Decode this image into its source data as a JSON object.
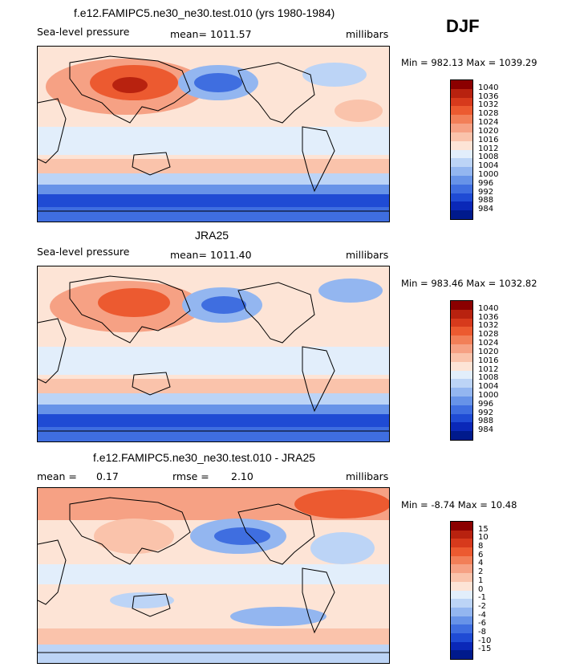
{
  "season": "DJF",
  "panels": [
    {
      "title": "f.e12.FAMIPC5.ne30_ne30.test.010 (yrs 1980-1984)",
      "left_label": "Sea-level pressure",
      "stat_text": "mean= 1011.57",
      "units": "millibars",
      "minmax": "Min = 982.13 Max = 1039.29",
      "colorbar": {
        "labels": [
          "1040",
          "1036",
          "1032",
          "1028",
          "1024",
          "1020",
          "1016",
          "1012",
          "1008",
          "1004",
          "1000",
          "996",
          "992",
          "988",
          "984"
        ],
        "colors": [
          "#8b0000",
          "#b8220f",
          "#d73a1c",
          "#ec5a30",
          "#f27f58",
          "#f6a184",
          "#fac3ab",
          "#fde4d6",
          "#e2eefb",
          "#bcd4f6",
          "#93b6f0",
          "#6793e8",
          "#3f6ee0",
          "#1f4bd4",
          "#0a28b8",
          "#001a8c"
        ]
      },
      "fields": [
        {
          "name": "siberian-high",
          "color": "#e45a34"
        },
        {
          "name": "aleutian-low",
          "color": "#5f8fe8"
        },
        {
          "name": "southern-ocean-low",
          "color": "#1e48d0"
        }
      ]
    },
    {
      "title": "JRA25",
      "left_label": "Sea-level pressure",
      "stat_text": "mean= 1011.40",
      "units": "millibars",
      "minmax": "Min = 983.46 Max = 1032.82",
      "colorbar": {
        "labels": [
          "1040",
          "1036",
          "1032",
          "1028",
          "1024",
          "1020",
          "1016",
          "1012",
          "1008",
          "1004",
          "1000",
          "996",
          "992",
          "988",
          "984"
        ],
        "colors": [
          "#8b0000",
          "#b8220f",
          "#d73a1c",
          "#ec5a30",
          "#f27f58",
          "#f6a184",
          "#fac3ab",
          "#fde4d6",
          "#e2eefb",
          "#bcd4f6",
          "#93b6f0",
          "#6793e8",
          "#3f6ee0",
          "#1f4bd4",
          "#0a28b8",
          "#001a8c"
        ]
      }
    },
    {
      "title": "f.e12.FAMIPC5.ne30_ne30.test.010 - JRA25",
      "mean_label": "mean =",
      "mean_value": "0.17",
      "rmse_label": "rmse =",
      "rmse_value": "2.10",
      "units": "millibars",
      "minmax": "Min = -8.74 Max = 10.48",
      "colorbar": {
        "labels": [
          "15",
          "10",
          "8",
          "6",
          "4",
          "2",
          "1",
          "0",
          "-1",
          "-2",
          "-4",
          "-6",
          "-8",
          "-10",
          "-15"
        ],
        "colors": [
          "#8b0000",
          "#b8220f",
          "#d73a1c",
          "#ec5a30",
          "#f27f58",
          "#f6a184",
          "#fac3ab",
          "#fde4d6",
          "#e2eefb",
          "#bcd4f6",
          "#93b6f0",
          "#6793e8",
          "#3f6ee0",
          "#1f4bd4",
          "#0a28b8",
          "#001a8c"
        ]
      }
    }
  ]
}
